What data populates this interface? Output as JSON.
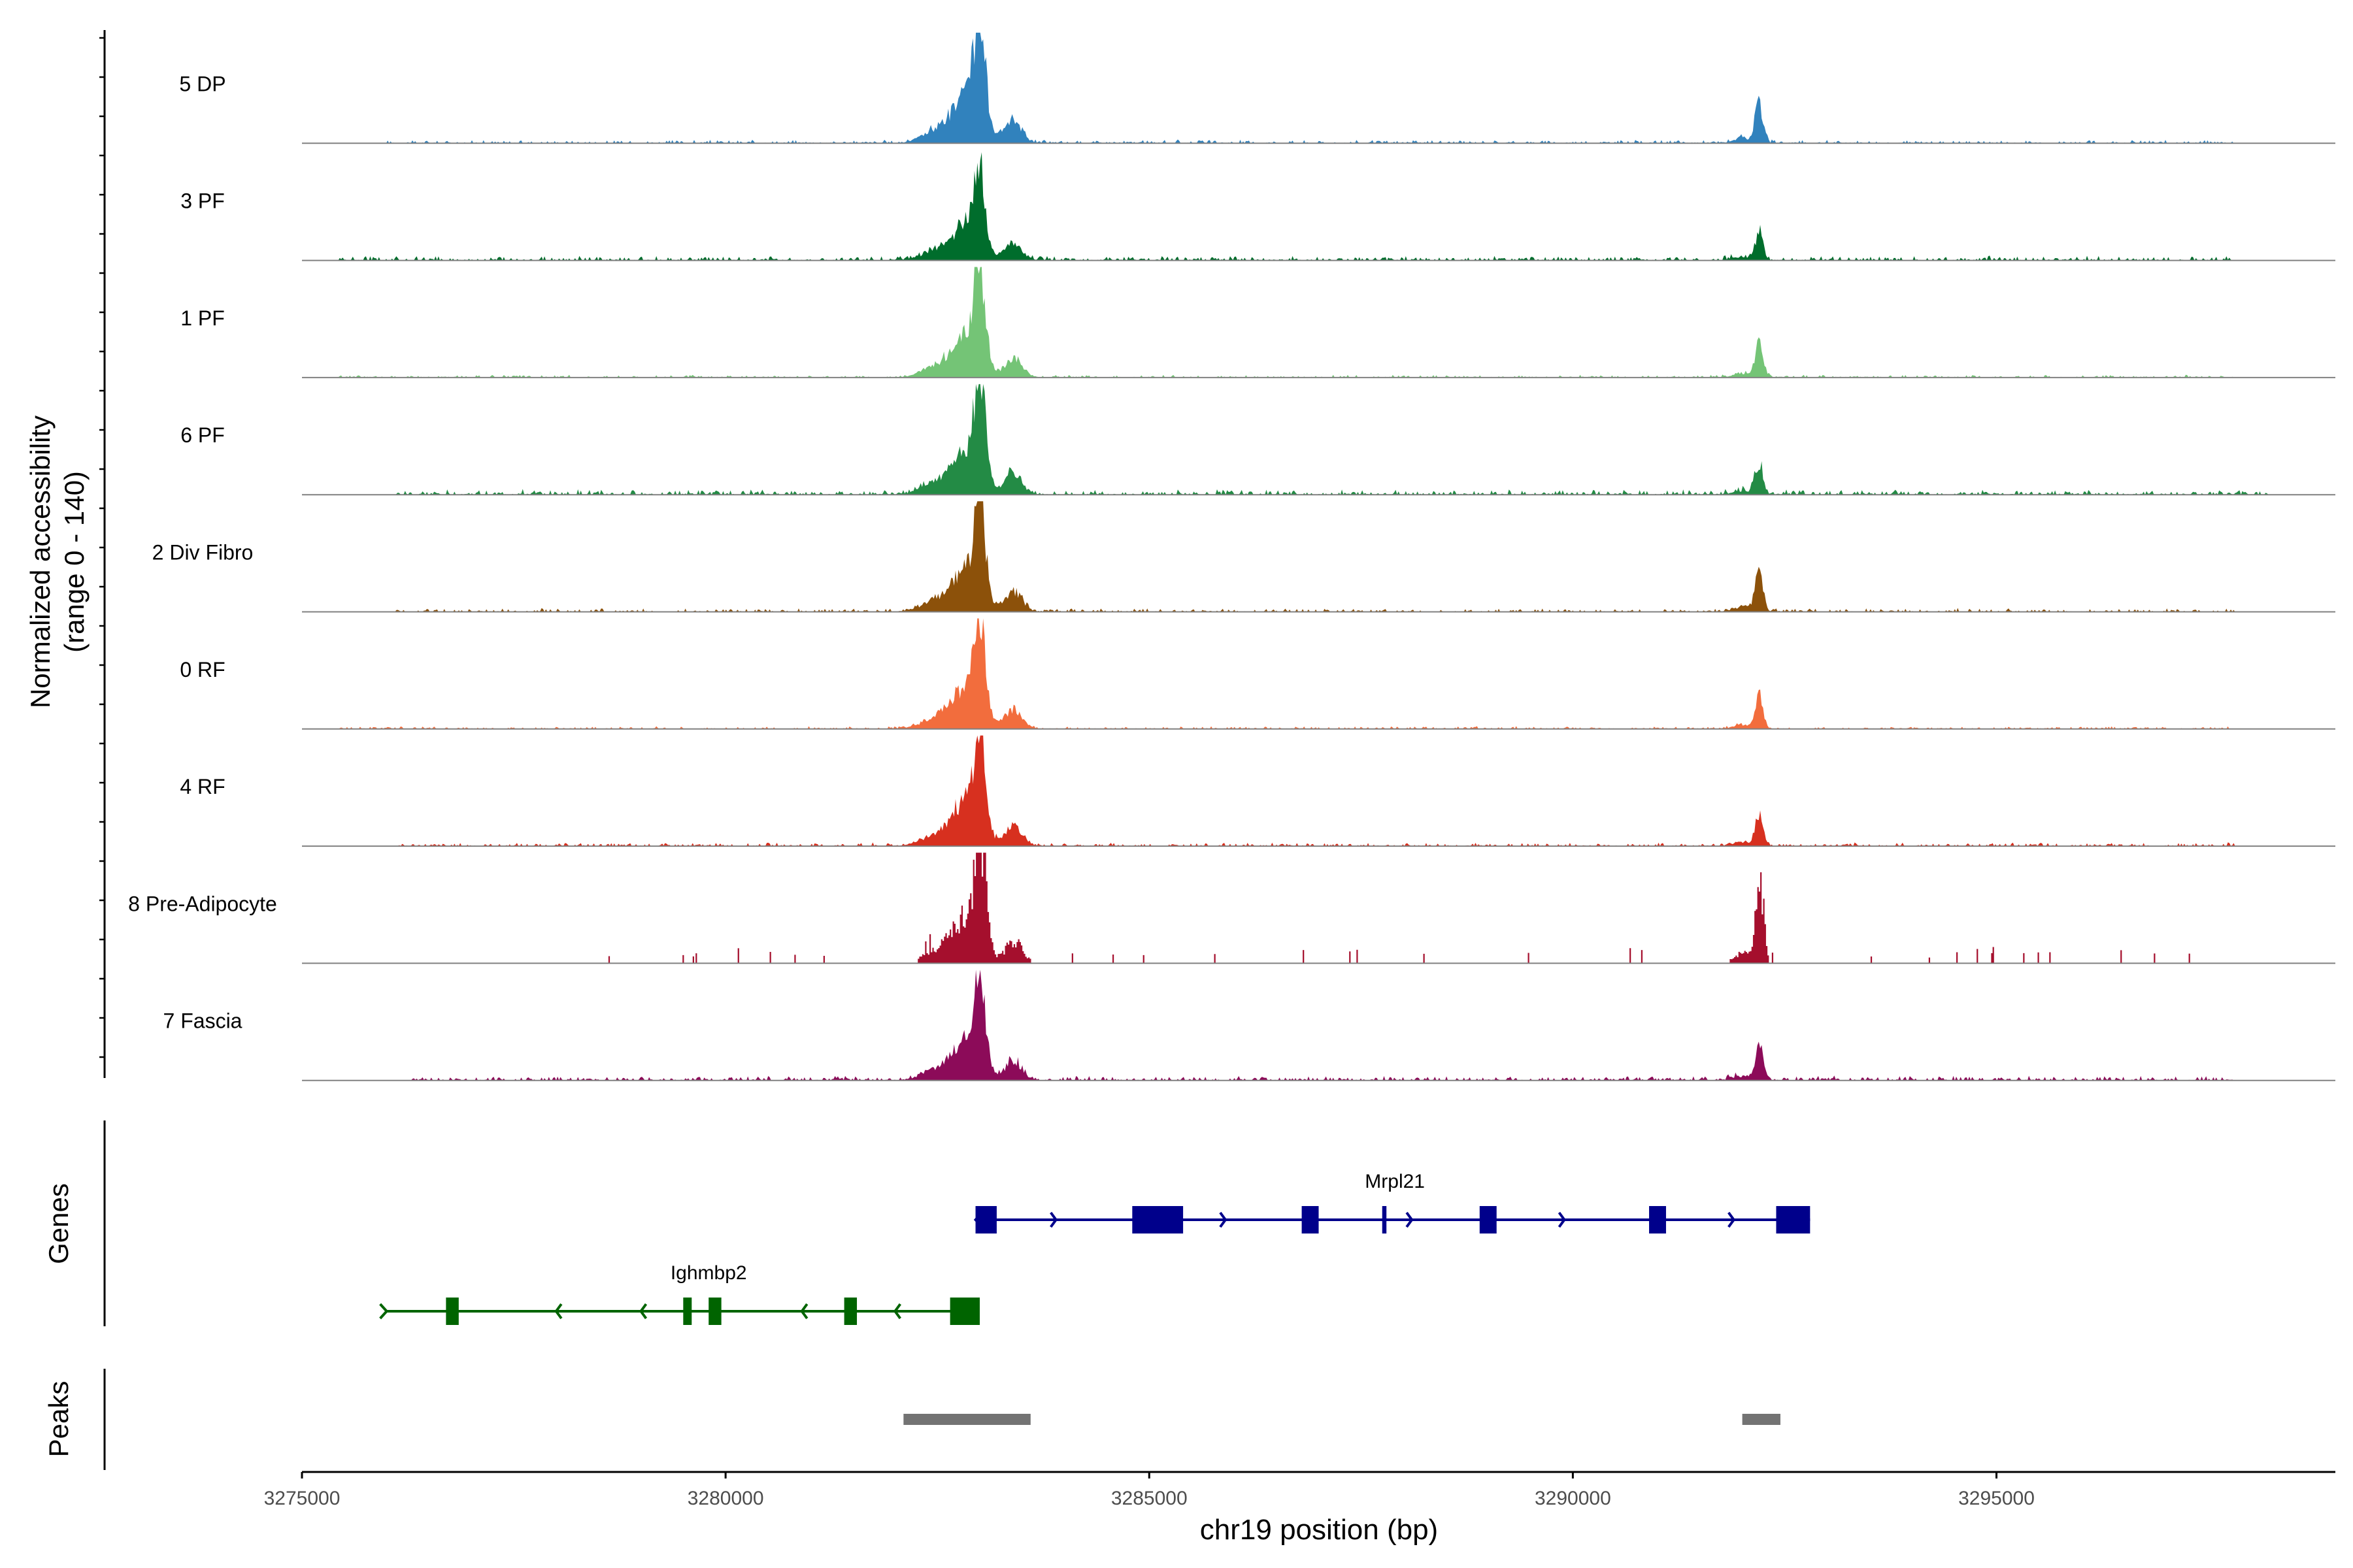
{
  "chart_data": {
    "type": "area",
    "title": "",
    "xlabel": "chr19 position (bp)",
    "ylabel": "Normalized accessibility",
    "ylabel_sub": "(range 0 - 140)",
    "xlim": [
      3275000,
      3299000
    ],
    "ylim": [
      0,
      140
    ],
    "x_ticks": [
      3275000,
      3280000,
      3285000,
      3290000,
      3295000
    ],
    "x_tick_labels": [
      "3275000",
      "3280000",
      "3285000",
      "3290000",
      "3295000"
    ],
    "genes_label": "Genes",
    "peaks_label": "Peaks",
    "tracks": [
      {
        "name": "5 DP",
        "color": "#3182bd",
        "main_peak": 128,
        "second_peak": 48,
        "noise": 4,
        "x_start": 3276000,
        "x_end": 3297800
      },
      {
        "name": "3 PF",
        "color": "#006d2c",
        "main_peak": 95,
        "second_peak": 35,
        "noise": 5,
        "x_start": 3275400,
        "x_end": 3297800
      },
      {
        "name": "1 PF",
        "color": "#74c476",
        "main_peak": 112,
        "second_peak": 45,
        "noise": 3,
        "x_start": 3275400,
        "x_end": 3297800
      },
      {
        "name": "6 PF",
        "color": "#238b45",
        "main_peak": 118,
        "second_peak": 38,
        "noise": 6,
        "x_start": 3276100,
        "x_end": 3298200
      },
      {
        "name": "2 Div Fibro",
        "color": "#8c510a",
        "main_peak": 115,
        "second_peak": 48,
        "noise": 4,
        "x_start": 3276100,
        "x_end": 3297800
      },
      {
        "name": "0 RF",
        "color": "#f26d3d",
        "main_peak": 115,
        "second_peak": 42,
        "noise": 3,
        "x_start": 3275400,
        "x_end": 3297800
      },
      {
        "name": "4 RF",
        "color": "#d7301f",
        "main_peak": 120,
        "second_peak": 42,
        "noise": 4,
        "x_start": 3276100,
        "x_end": 3297800
      },
      {
        "name": "8 Pre-Adipocyte",
        "color": "#a50f2d",
        "main_peak": 130,
        "second_peak": 105,
        "noise": 0,
        "x_start": 3278300,
        "x_end": 3297400
      },
      {
        "name": "7 Fascia",
        "color": "#8c0b59",
        "main_peak": 108,
        "second_peak": 42,
        "noise": 5,
        "x_start": 3276300,
        "x_end": 3297800
      }
    ],
    "genes": [
      {
        "name": "Mrpl21",
        "color": "#00008b",
        "strand": "+",
        "start": 3282950,
        "end": 3292800,
        "exons": [
          [
            3282950,
            3283200
          ],
          [
            3284800,
            3285400
          ],
          [
            3286800,
            3287000
          ],
          [
            3287750,
            3287800
          ],
          [
            3288900,
            3289100
          ],
          [
            3290900,
            3291100
          ],
          [
            3292400,
            3292800
          ]
        ],
        "arrows": [
          3283900,
          3285900,
          3288100,
          3289900,
          3291900
        ]
      },
      {
        "name": "Ighmbp2",
        "color": "#006400",
        "strand": "-",
        "start": 3276000,
        "end": 3283000,
        "exons": [
          [
            3276700,
            3276850
          ],
          [
            3279500,
            3279600
          ],
          [
            3279800,
            3279950
          ],
          [
            3281400,
            3281550
          ],
          [
            3282650,
            3283000
          ]
        ],
        "arrows": [
          3278000,
          3279000,
          3280900,
          3282000
        ]
      }
    ],
    "peaks": [
      {
        "start": 3282100,
        "end": 3283600
      },
      {
        "start": 3292000,
        "end": 3292450
      }
    ]
  }
}
